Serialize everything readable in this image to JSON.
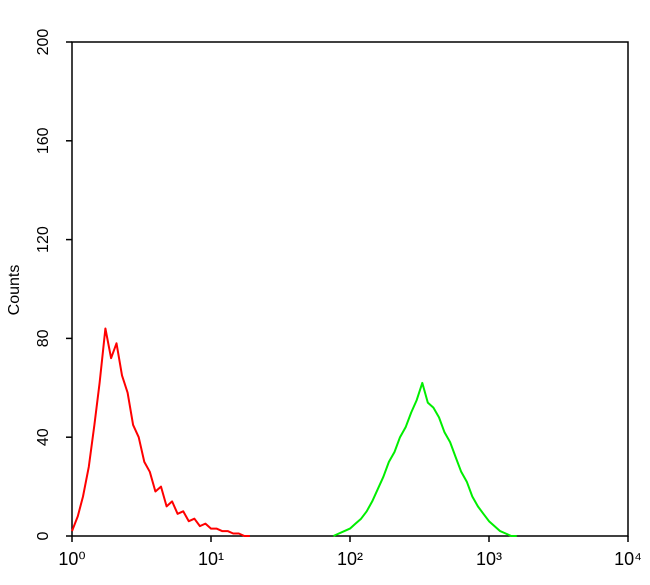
{
  "chart_data": {
    "type": "line",
    "y_label": "Counts",
    "xscale": "log",
    "xlim": [
      1,
      10000
    ],
    "xticks": [
      {
        "value": 1,
        "label": "10⁰"
      },
      {
        "value": 10,
        "label": "10¹"
      },
      {
        "value": 100,
        "label": "10²"
      },
      {
        "value": 1000,
        "label": "10³"
      },
      {
        "value": 10000,
        "label": "10⁴"
      }
    ],
    "ylim": [
      0,
      200
    ],
    "yticks": [
      0,
      40,
      80,
      120,
      160,
      200
    ],
    "series": [
      {
        "color": "#ff0000",
        "x": [
          1,
          1.1,
          1.2,
          1.32,
          1.45,
          1.58,
          1.74,
          1.91,
          2.09,
          2.29,
          2.51,
          2.75,
          3.02,
          3.31,
          3.63,
          3.98,
          4.37,
          4.79,
          5.25,
          5.75,
          6.31,
          6.92,
          7.59,
          8.32,
          9.12,
          10,
          10.96,
          12.02,
          13.18,
          14.45,
          15.85,
          17.38,
          19.05
        ],
        "values": [
          2,
          8,
          16,
          28,
          45,
          62,
          84,
          72,
          78,
          65,
          58,
          45,
          40,
          30,
          26,
          18,
          20,
          12,
          14,
          9,
          10,
          6,
          7,
          4,
          5,
          3,
          3,
          2,
          2,
          1,
          1,
          0,
          0
        ]
      },
      {
        "color": "#00ee00",
        "x": [
          75.9,
          83.2,
          91.2,
          100,
          109.6,
          120.2,
          131.8,
          144.5,
          158.5,
          173.8,
          190.5,
          208.9,
          229.1,
          251.2,
          275.4,
          302,
          331.1,
          363.1,
          398.1,
          436.5,
          478.6,
          524.8,
          575.4,
          631,
          691.8,
          758.6,
          831.8,
          912,
          1000,
          1096,
          1202,
          1318,
          1445,
          1585
        ],
        "values": [
          0,
          1,
          2,
          3,
          5,
          7,
          10,
          14,
          19,
          24,
          30,
          34,
          40,
          44,
          50,
          55,
          62,
          54,
          52,
          48,
          42,
          38,
          32,
          26,
          22,
          16,
          12,
          9,
          6,
          4,
          2,
          1,
          0,
          0
        ]
      }
    ]
  }
}
